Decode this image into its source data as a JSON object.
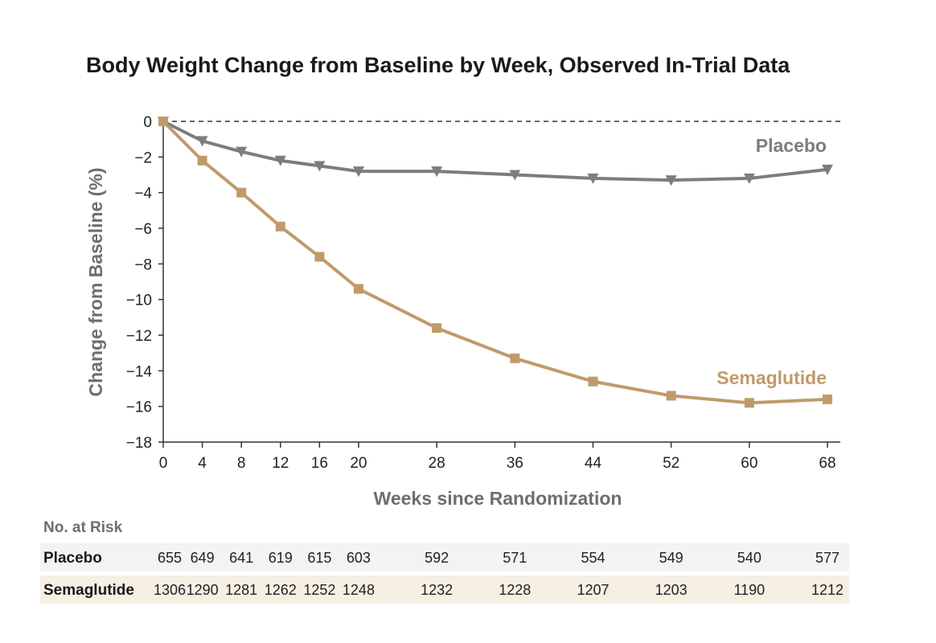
{
  "chart_data": {
    "type": "line",
    "title": "Body Weight Change from Baseline by Week, Observed In-Trial Data",
    "xlabel": "Weeks since Randomization",
    "ylabel": "Change from Baseline (%)",
    "xlim": [
      0,
      68
    ],
    "ylim": [
      -18,
      0
    ],
    "x_ticks": [
      0,
      4,
      8,
      12,
      16,
      20,
      28,
      36,
      44,
      52,
      60,
      68
    ],
    "y_ticks": [
      0,
      -2,
      -4,
      -6,
      -8,
      -10,
      -12,
      -14,
      -16,
      -18
    ],
    "y_tick_labels": [
      "0",
      "−2",
      "−4",
      "−6",
      "−8",
      "−10",
      "−12",
      "−14",
      "−16",
      "−18"
    ],
    "reference_line": {
      "y": 0,
      "style": "dashed"
    },
    "grid": false,
    "series": [
      {
        "name": "Placebo",
        "color": "#7d7d7d",
        "marker": "triangle-down",
        "x": [
          0,
          4,
          8,
          12,
          16,
          20,
          28,
          36,
          44,
          52,
          60,
          68
        ],
        "values": [
          0,
          -1.1,
          -1.7,
          -2.2,
          -2.5,
          -2.8,
          -2.8,
          -3.0,
          -3.2,
          -3.3,
          -3.2,
          -2.7
        ]
      },
      {
        "name": "Semaglutide",
        "color": "#c19a6b",
        "marker": "square",
        "x": [
          0,
          4,
          8,
          12,
          16,
          20,
          28,
          36,
          44,
          52,
          60,
          68
        ],
        "values": [
          0,
          -2.2,
          -4.0,
          -5.9,
          -7.6,
          -9.4,
          -11.6,
          -13.3,
          -14.6,
          -15.4,
          -15.8,
          -15.6
        ]
      }
    ],
    "at_risk": {
      "title": "No. at Risk",
      "rows": [
        {
          "name": "Placebo",
          "values": [
            "655",
            "649",
            "641",
            "619",
            "615",
            "603",
            "592",
            "571",
            "554",
            "549",
            "540",
            "577"
          ]
        },
        {
          "name": "Semaglutide",
          "values": [
            "1306",
            "1290",
            "1281",
            "1262",
            "1252",
            "1248",
            "1232",
            "1228",
            "1207",
            "1203",
            "1190",
            "1212"
          ]
        }
      ]
    }
  },
  "colors": {
    "axis": "#333333",
    "placebo": "#7d7d7d",
    "semaglutide": "#c19a6b",
    "placebo_row_bg": "#f3f3f3",
    "semaglutide_row_bg": "#f6efe4"
  }
}
